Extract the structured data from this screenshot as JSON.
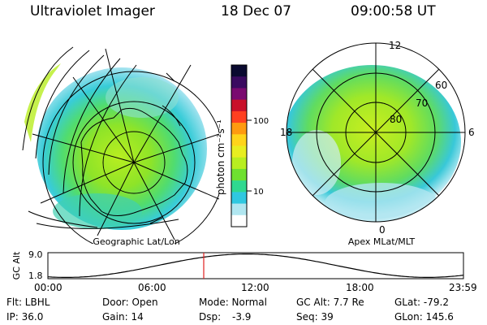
{
  "header": {
    "instrument": "Ultraviolet Imager",
    "date": "18 Dec 07",
    "time": "09:00:58 UT"
  },
  "colorbar": {
    "unit_label": "photon cm⁻²s⁻¹",
    "ticks": [
      "100",
      "10"
    ],
    "colors": [
      "#0a0a30",
      "#3a0a60",
      "#7a0a70",
      "#c8102a",
      "#ff4020",
      "#ff9a10",
      "#ffd41a",
      "#e8ee20",
      "#b8ee20",
      "#6ee030",
      "#30d890",
      "#30c8e0",
      "#b0e6f0",
      "#ffffff"
    ]
  },
  "left_map": {
    "label": "Geographic Lat/Lon"
  },
  "right_map": {
    "label": "Apex MLat/MLT",
    "mlt_labels": {
      "top": "12",
      "left": "18",
      "right": "6",
      "bottom": "0"
    },
    "lat_labels": [
      "60",
      "70",
      "80"
    ]
  },
  "alt_plot": {
    "ylabel": "GC Alt",
    "yticks": [
      "9.0",
      "1.8"
    ],
    "xticks": [
      "00:00",
      "06:00",
      "12:00",
      "18:00",
      "23:59"
    ],
    "marker_time_fraction": 0.375
  },
  "info": {
    "flt": "Flt: LBHL",
    "ip": "IP: 36.0",
    "door": "Door: Open",
    "gain": "Gain: 14",
    "mode": "Mode: Normal",
    "dsp_label": "Dsp:",
    "dsp_value": "-3.9",
    "gc_alt": "GC Alt: 7.7 Re",
    "seq": "Seq: 39",
    "glat": "GLat: -79.2",
    "glon": "GLon: 145.6"
  }
}
